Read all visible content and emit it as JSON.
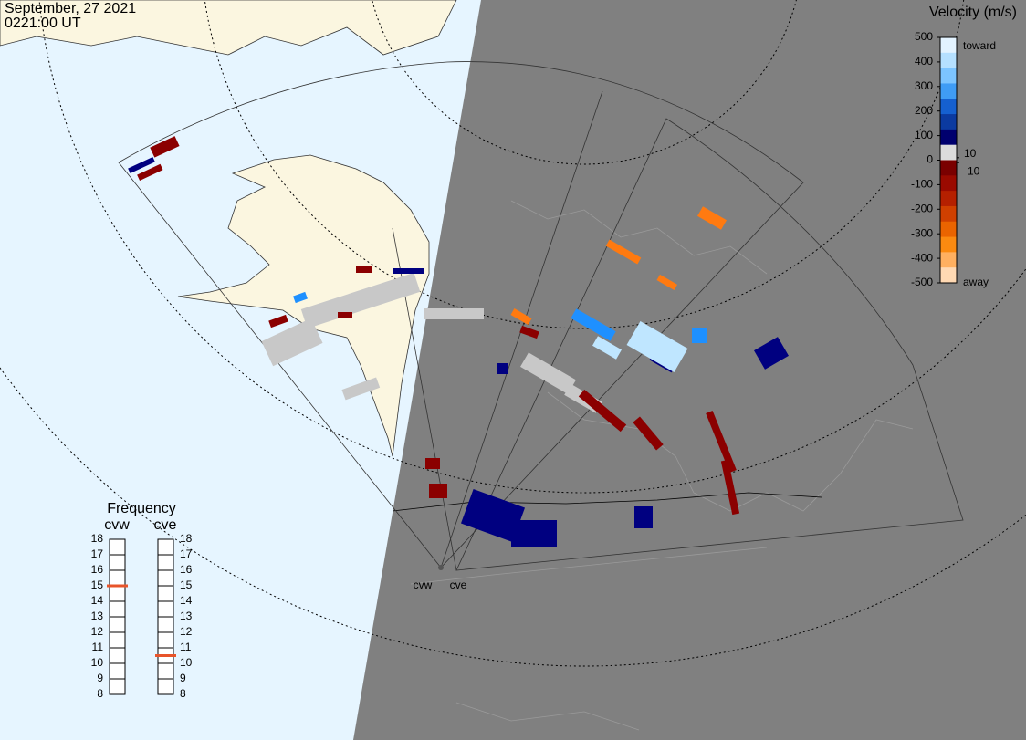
{
  "header": {
    "date": "September, 27 2021",
    "time": "0221:00 UT"
  },
  "velocity_scale": {
    "title": "Velocity (m/s)",
    "ylim": [
      -500,
      500
    ],
    "ticks": [
      500,
      400,
      300,
      200,
      100,
      0,
      -100,
      -200,
      -300,
      -400,
      -500
    ],
    "inner_ticks": [
      10,
      -10
    ],
    "top_label": "toward",
    "bottom_label": "away",
    "colors": [
      "#e3f3ff",
      "#b5e0ff",
      "#7cc4ff",
      "#3f9cf5",
      "#1560d0",
      "#0b3aa0",
      "#00006e",
      "#dcdcdc",
      "#7a0000",
      "#9a0a00",
      "#b52000",
      "#d04000",
      "#ea6400",
      "#fb8a10",
      "#ffb060",
      "#ffd9b3"
    ]
  },
  "frequency": {
    "title": "Frequency",
    "ylim": [
      8,
      18
    ],
    "ticks": [
      18,
      17,
      16,
      15,
      14,
      13,
      12,
      11,
      10,
      9,
      8
    ],
    "radars": [
      {
        "name": "cvw",
        "value": 15,
        "color": "#e8542a"
      },
      {
        "name": "cve",
        "value": 10.5,
        "color": "#e8542a"
      }
    ]
  },
  "map": {
    "sites": [
      "cvw",
      "cve"
    ]
  }
}
